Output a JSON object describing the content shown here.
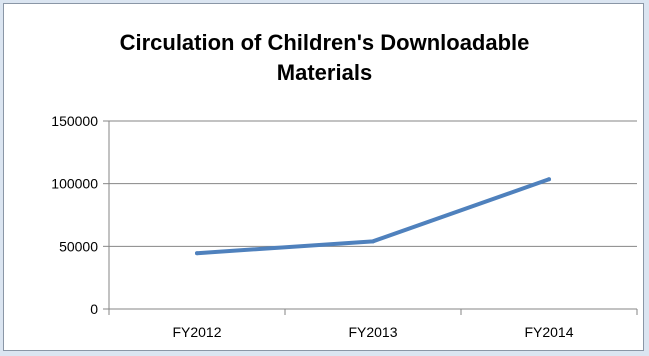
{
  "chart_data": {
    "type": "line",
    "title": "Circulation of Children's Downloadable Materials",
    "categories": [
      "FY2012",
      "FY2013",
      "FY2014"
    ],
    "series": [
      {
        "values": [
          44500,
          54000,
          103500
        ],
        "color": "#4f81bd"
      }
    ],
    "ylim": [
      0,
      150000
    ],
    "yticks": [
      "0",
      "50000",
      "100000",
      "150000"
    ],
    "grid": true,
    "legend": "none"
  }
}
